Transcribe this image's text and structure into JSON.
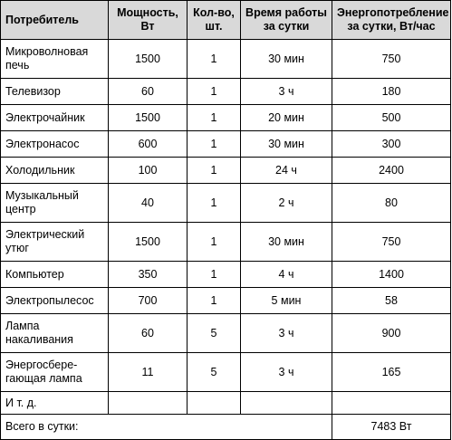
{
  "headers": [
    "Потребитель",
    "Мощность, Вт",
    "Кол-во, шт.",
    "Время работы за сутки",
    "Энергопотребление за сутки, Вт/час"
  ],
  "rows": [
    [
      "Микроволновая печь",
      "1500",
      "1",
      "30 мин",
      "750"
    ],
    [
      "Телевизор",
      "60",
      "1",
      "3 ч",
      "180"
    ],
    [
      "Электрочайник",
      "1500",
      "1",
      "20 мин",
      "500"
    ],
    [
      "Электронасос",
      "600",
      "1",
      "30 мин",
      "300"
    ],
    [
      "Холодильник",
      "100",
      "1",
      "24 ч",
      "2400"
    ],
    [
      "Музыкальный центр",
      "40",
      "1",
      "2 ч",
      "80"
    ],
    [
      "Электрический утюг",
      "1500",
      "1",
      "30 мин",
      "750"
    ],
    [
      "Компьютер",
      "350",
      "1",
      "4 ч",
      "1400"
    ],
    [
      "Электропылесос",
      "700",
      "1",
      "5 мин",
      "58"
    ],
    [
      "Лампа накаливания",
      "60",
      "5",
      "3 ч",
      "900"
    ],
    [
      "Энергосбере-гающая лампа",
      "11",
      "5",
      "3 ч",
      "165"
    ],
    [
      "И т. д.",
      "",
      "",
      "",
      ""
    ]
  ],
  "total": {
    "label": "Всего в сутки:",
    "value": "7483 Вт"
  }
}
